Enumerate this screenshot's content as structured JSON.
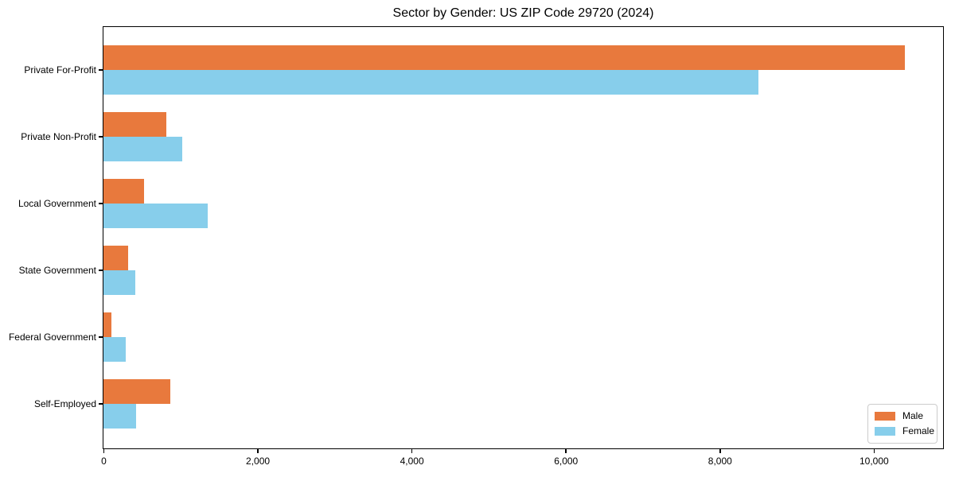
{
  "title": "Sector by Gender: US ZIP Code 29720 (2024)",
  "chart_data": {
    "type": "bar",
    "orientation": "horizontal",
    "title": "Sector by Gender: US ZIP Code 29720 (2024)",
    "categories": [
      "Private For-Profit",
      "Private Non-Profit",
      "Local Government",
      "State Government",
      "Federal Government",
      "Self-Employed"
    ],
    "series": [
      {
        "name": "Male",
        "color": "#E8793D",
        "values": [
          10400,
          820,
          530,
          320,
          100,
          870
        ]
      },
      {
        "name": "Female",
        "color": "#87CEEB",
        "values": [
          8500,
          1020,
          1350,
          410,
          290,
          420
        ]
      }
    ],
    "xlim": [
      0,
      10890
    ],
    "xticks": [
      0,
      2000,
      4000,
      6000,
      8000,
      10000
    ],
    "xtick_labels": [
      "0",
      "2,000",
      "4,000",
      "6,000",
      "8,000",
      "10,000"
    ],
    "xlabel": "",
    "ylabel": "",
    "grid": false,
    "legend_position": "lower right"
  },
  "legend": {
    "items": [
      {
        "label": "Male",
        "color": "#E8793D"
      },
      {
        "label": "Female",
        "color": "#87CEEB"
      }
    ]
  }
}
